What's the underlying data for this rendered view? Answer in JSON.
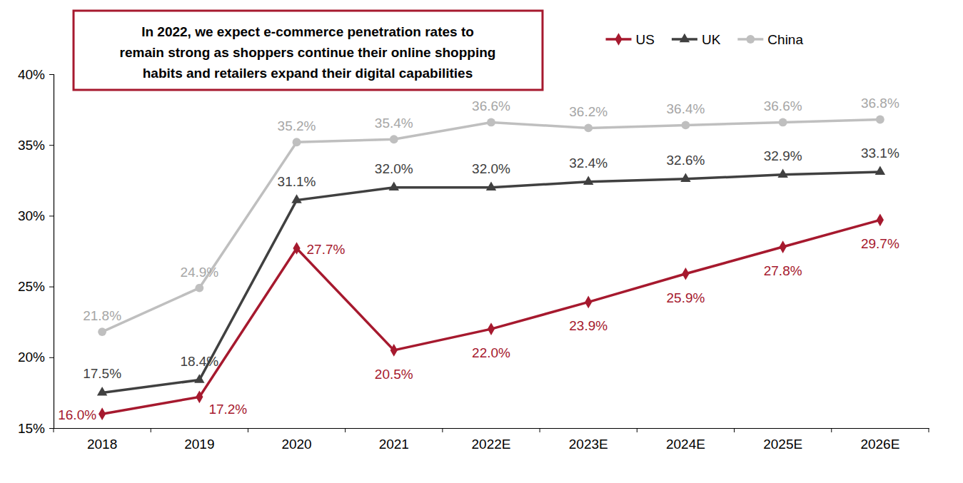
{
  "chart_data": {
    "type": "line",
    "annotation": [
      "In 2022, we expect e-commerce penetration rates to",
      "remain strong as shoppers continue their online shopping",
      "habits and retailers expand their digital capabilities"
    ],
    "categories": [
      "2018",
      "2019",
      "2020",
      "2021",
      "2022E",
      "2023E",
      "2024E",
      "2025E",
      "2026E"
    ],
    "ylim": [
      15,
      40
    ],
    "yticks": [
      {
        "value": 15,
        "label": "15%"
      },
      {
        "value": 20,
        "label": "20%"
      },
      {
        "value": 25,
        "label": "25%"
      },
      {
        "value": 30,
        "label": "30%"
      },
      {
        "value": 35,
        "label": "35%"
      },
      {
        "value": 40,
        "label": "40%"
      }
    ],
    "grid": false,
    "legend": "top-right",
    "data_labels": true,
    "series": [
      {
        "name": "US",
        "color": "#A6192E",
        "marker": "diamond",
        "line_style": "solid",
        "values": [
          16.0,
          17.2,
          27.7,
          20.5,
          22.0,
          23.9,
          25.9,
          27.8,
          29.7
        ],
        "value_labels": [
          "16.0%",
          "17.2%",
          "27.7%",
          "20.5%",
          "22.0%",
          "23.9%",
          "25.9%",
          "27.8%",
          "29.7%"
        ]
      },
      {
        "name": "UK",
        "color": "#404040",
        "marker": "triangle",
        "line_style": "solid",
        "values": [
          17.5,
          18.4,
          31.1,
          32.0,
          32.0,
          32.4,
          32.6,
          32.9,
          33.1
        ],
        "value_labels": [
          "17.5%",
          "18.4%",
          "31.1%",
          "32.0%",
          "32.0%",
          "32.4%",
          "32.6%",
          "32.9%",
          "33.1%"
        ]
      },
      {
        "name": "China",
        "color": "#BFBFBF",
        "marker": "circle",
        "line_style": "solid",
        "values": [
          21.8,
          24.9,
          35.2,
          35.4,
          36.6,
          36.2,
          36.4,
          36.6,
          36.8
        ],
        "value_labels": [
          "21.8%",
          "24.9%",
          "35.2%",
          "35.4%",
          "36.6%",
          "36.2%",
          "36.4%",
          "36.6%",
          "36.8%"
        ]
      }
    ]
  }
}
